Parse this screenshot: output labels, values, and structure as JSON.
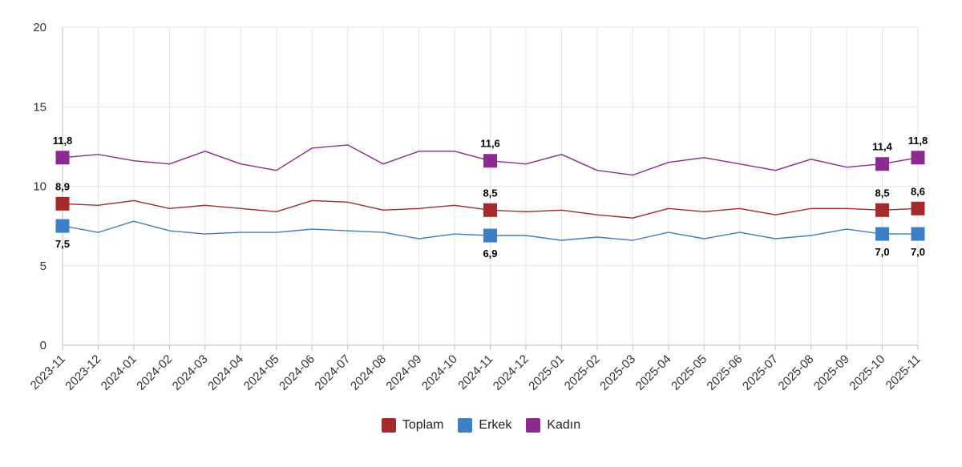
{
  "chart_data": {
    "type": "line",
    "title": "",
    "xlabel": "",
    "ylabel": "",
    "ylim": [
      0,
      20
    ],
    "yticks": [
      "0",
      "5",
      "10",
      "15",
      "20"
    ],
    "grid": true,
    "legend_position": "bottom",
    "categories": [
      "2023-11",
      "2023-12",
      "2024-01",
      "2024-02",
      "2024-03",
      "2024-04",
      "2024-05",
      "2024-06",
      "2024-07",
      "2024-08",
      "2024-09",
      "2024-10",
      "2024-11",
      "2024-12",
      "2025-01",
      "2025-02",
      "2025-03",
      "2025-04",
      "2025-05",
      "2025-06",
      "2025-07",
      "2025-08",
      "2025-09",
      "2025-10",
      "2025-11"
    ],
    "series": [
      {
        "name": "Toplam",
        "color": "#a52a2a",
        "values": [
          8.9,
          8.8,
          9.1,
          8.6,
          8.8,
          8.6,
          8.4,
          9.1,
          9.0,
          8.5,
          8.6,
          8.8,
          8.5,
          8.4,
          8.5,
          8.2,
          8.0,
          8.6,
          8.4,
          8.6,
          8.2,
          8.6,
          8.6,
          8.5,
          8.6
        ],
        "labeled_points": [
          {
            "index": 0,
            "text": "8,9"
          },
          {
            "index": 12,
            "text": "8,5"
          },
          {
            "index": 23,
            "text": "8,5"
          },
          {
            "index": 24,
            "text": "8,6"
          }
        ]
      },
      {
        "name": "Erkek",
        "color": "#3d7fc4",
        "values": [
          7.5,
          7.1,
          7.8,
          7.2,
          7.0,
          7.1,
          7.1,
          7.3,
          7.2,
          7.1,
          6.7,
          7.0,
          6.9,
          6.9,
          6.6,
          6.8,
          6.6,
          7.1,
          6.7,
          7.1,
          6.7,
          6.9,
          7.3,
          7.0,
          7.0
        ],
        "labeled_points": [
          {
            "index": 0,
            "text": "7,5"
          },
          {
            "index": 12,
            "text": "6,9"
          },
          {
            "index": 23,
            "text": "7,0"
          },
          {
            "index": 24,
            "text": "7,0"
          }
        ]
      },
      {
        "name": "Kadın",
        "color": "#8b2a8f",
        "values": [
          11.8,
          12.0,
          11.6,
          11.4,
          12.2,
          11.4,
          11.0,
          12.4,
          12.6,
          11.4,
          12.2,
          12.2,
          11.6,
          11.4,
          12.0,
          11.0,
          10.7,
          11.5,
          11.8,
          11.4,
          11.0,
          11.7,
          11.2,
          11.4,
          11.8
        ],
        "labeled_points": [
          {
            "index": 0,
            "text": "11,8"
          },
          {
            "index": 12,
            "text": "11,6"
          },
          {
            "index": 23,
            "text": "11,4"
          },
          {
            "index": 24,
            "text": "11,8"
          }
        ]
      }
    ]
  }
}
